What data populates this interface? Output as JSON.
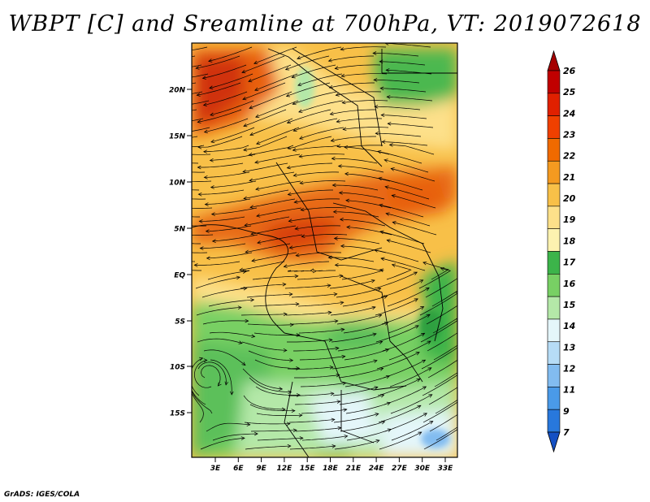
{
  "title": "WBPT [C] and Sreamline at 700hPa, VT: 2019072618",
  "footer": "GrADS: IGES/COLA",
  "map": {
    "lat_labels": [
      "20N",
      "15N",
      "10N",
      "5N",
      "EQ",
      "5S",
      "10S",
      "15S"
    ],
    "lon_labels": [
      "3E",
      "6E",
      "9E",
      "12E",
      "15E",
      "18E",
      "21E",
      "24E",
      "27E",
      "30E",
      "33E"
    ]
  },
  "colorbar": {
    "labels": [
      "26",
      "25",
      "24",
      "23",
      "22",
      "21",
      "20",
      "19",
      "18",
      "17",
      "16",
      "15",
      "14",
      "13",
      "12",
      "11",
      "9",
      "7"
    ],
    "colors": [
      "#a50000",
      "#c00000",
      "#e02000",
      "#f04000",
      "#f06a00",
      "#f49a20",
      "#f8c048",
      "#fde08a",
      "#fdf2b0",
      "#3cb44a",
      "#78d064",
      "#b4e8a8",
      "#e4f6fa",
      "#b6dcf6",
      "#82bcf0",
      "#4a9ae8",
      "#2878dc",
      "#1450c4"
    ]
  },
  "colors": {
    "land_warm": "#f8c048",
    "land_hot": "#e86010",
    "land_green": "#78d064",
    "land_cool": "#e4f6fa"
  }
}
